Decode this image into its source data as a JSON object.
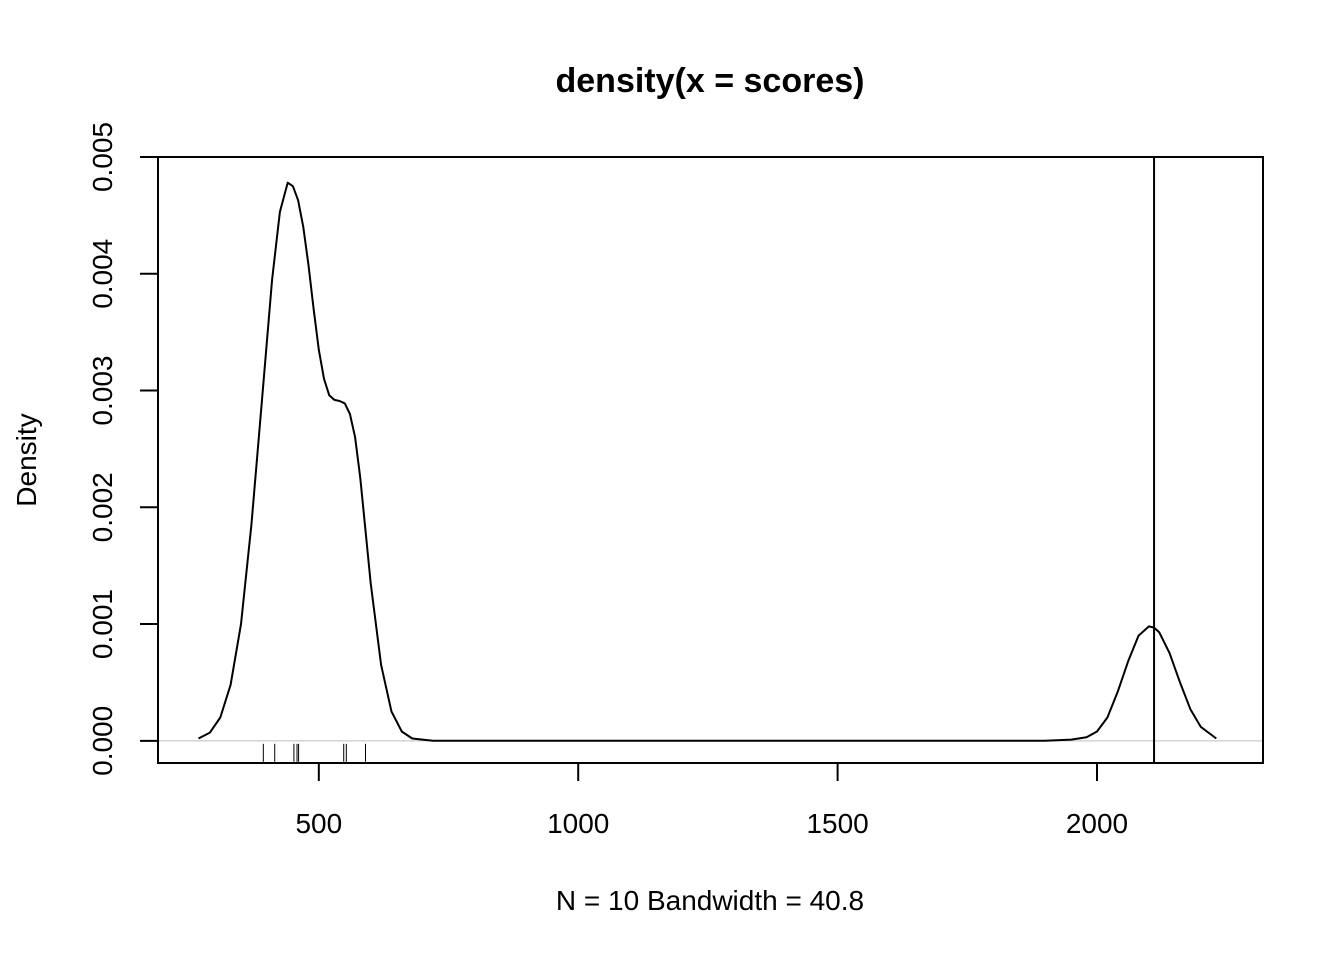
{
  "chart_data": {
    "type": "line",
    "title": "density(x = scores)",
    "xlabel": "N = 10   Bandwidth = 40.8",
    "ylabel": "Density",
    "xlim": [
      190,
      2320
    ],
    "ylim": [
      -0.00019,
      0.005
    ],
    "x_ticks": [
      500,
      1000,
      1500,
      2000
    ],
    "x_tick_labels": [
      "500",
      "1000",
      "1500",
      "2000"
    ],
    "y_ticks": [
      0.0,
      0.001,
      0.002,
      0.003,
      0.004,
      0.005
    ],
    "y_tick_labels": [
      "0.000",
      "0.001",
      "0.002",
      "0.003",
      "0.004",
      "0.005"
    ],
    "grid": false,
    "legend": "none",
    "series": [
      {
        "x": [
          268,
          290,
          310,
          330,
          350,
          370,
          390,
          410,
          425,
          440,
          450,
          460,
          470,
          480,
          490,
          500,
          510,
          520,
          530,
          540,
          550,
          560,
          570,
          580,
          590,
          600,
          620,
          640,
          660,
          680,
          700,
          720,
          740,
          800,
          900,
          1000,
          1200,
          1400,
          1600,
          1800,
          1900,
          1950,
          1980,
          2000,
          2020,
          2040,
          2060,
          2080,
          2100,
          2110,
          2120,
          2140,
          2160,
          2180,
          2200,
          2230
        ],
        "y": [
          2e-05,
          7e-05,
          0.0002,
          0.00048,
          0.001,
          0.00185,
          0.0029,
          0.00395,
          0.00453,
          0.00478,
          0.00475,
          0.00463,
          0.0044,
          0.00408,
          0.0037,
          0.00335,
          0.0031,
          0.00296,
          0.00292,
          0.00291,
          0.00289,
          0.0028,
          0.0026,
          0.00225,
          0.0018,
          0.00135,
          0.00065,
          0.00025,
          8e-05,
          2e-05,
          1e-05,
          0.0,
          0.0,
          0.0,
          0.0,
          0.0,
          0.0,
          0.0,
          0.0,
          0.0,
          0.0,
          1e-05,
          3e-05,
          8e-05,
          0.0002,
          0.00042,
          0.00068,
          0.0009,
          0.00098,
          0.00097,
          0.00093,
          0.00075,
          0.0005,
          0.00027,
          0.00012,
          2e-05
        ]
      }
    ],
    "rug": [
      393,
      415,
      452,
      458,
      461,
      548,
      553,
      590
    ],
    "vline": 2110
  }
}
